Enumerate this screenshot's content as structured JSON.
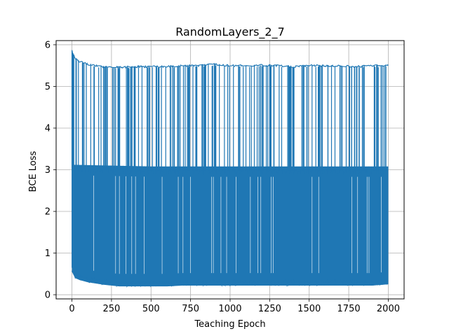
{
  "chart_data": {
    "type": "line",
    "title": "RandomLayers_2_7",
    "xlabel": "Teaching Epoch",
    "ylabel": "BCE Loss",
    "xlim": [
      -100,
      2100
    ],
    "ylim": [
      -0.1,
      6.1
    ],
    "xticks": [
      0,
      250,
      500,
      750,
      1000,
      1250,
      1500,
      1750,
      2000
    ],
    "yticks": [
      0,
      1,
      2,
      3,
      4,
      5,
      6
    ],
    "grid": true,
    "legend": "none",
    "series_color": "#1f77b4",
    "series": [
      {
        "description_epochs": [
          0,
          2000
        ],
        "upper_envelope": {
          "x": [
            0,
            5,
            20,
            50,
            100,
            150,
            200,
            250,
            300,
            400,
            500,
            600,
            700,
            800,
            900,
            1000,
            1100,
            1200,
            1300,
            1400,
            1500,
            1600,
            1700,
            1800,
            1900,
            2000
          ],
          "y": [
            5.88,
            5.82,
            5.7,
            5.62,
            5.56,
            5.52,
            5.5,
            5.49,
            5.49,
            5.5,
            5.5,
            5.5,
            5.52,
            5.53,
            5.55,
            5.52,
            5.52,
            5.53,
            5.52,
            5.5,
            5.53,
            5.52,
            5.52,
            5.5,
            5.52,
            5.52
          ]
        },
        "dense_band_upper": {
          "x": [
            0,
            250,
            500,
            750,
            1000,
            1250,
            1500,
            1750,
            2000
          ],
          "y": [
            3.12,
            3.1,
            3.08,
            3.08,
            3.08,
            3.08,
            3.08,
            3.08,
            3.08
          ]
        },
        "lower_envelope": {
          "x": [
            0,
            20,
            50,
            100,
            150,
            200,
            250,
            300,
            400,
            500,
            600,
            700,
            800,
            900,
            1000,
            1100,
            1200,
            1300,
            1400,
            1500,
            1600,
            1700,
            1800,
            1900,
            2000
          ],
          "y": [
            0.55,
            0.4,
            0.35,
            0.3,
            0.27,
            0.24,
            0.22,
            0.2,
            0.2,
            0.2,
            0.2,
            0.22,
            0.22,
            0.22,
            0.22,
            0.22,
            0.22,
            0.22,
            0.22,
            0.22,
            0.22,
            0.22,
            0.22,
            0.22,
            0.25
          ]
        }
      }
    ]
  }
}
